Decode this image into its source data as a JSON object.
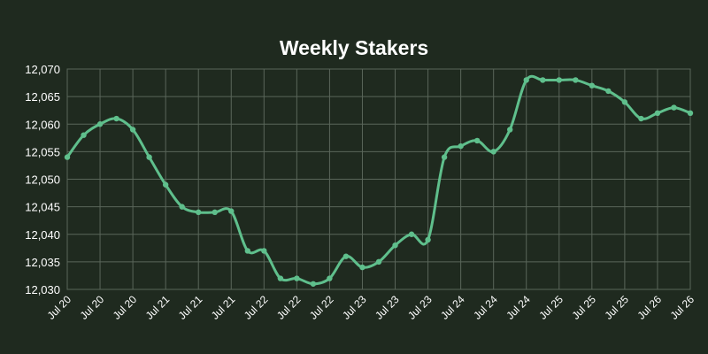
{
  "chart_data": {
    "type": "line",
    "title": "Weekly Stakers",
    "xlabel": "",
    "ylabel": "",
    "ylim": [
      12030,
      12070
    ],
    "yticks": [
      "12,030",
      "12,035",
      "12,040",
      "12,045",
      "12,050",
      "12,055",
      "12,060",
      "12,065",
      "12,070"
    ],
    "xticks": [
      "Jul 20",
      "Jul 20",
      "Jul 20",
      "Jul 21",
      "Jul 21",
      "Jul 21",
      "Jul 22",
      "Jul 22",
      "Jul 22",
      "Jul 23",
      "Jul 23",
      "Jul 23",
      "Jul 24",
      "Jul 24",
      "Jul 24",
      "Jul 25",
      "Jul 25",
      "Jul 25",
      "Jul 26",
      "Jul 26"
    ],
    "grid": true,
    "line_color": "#5fbf8c",
    "series": [
      {
        "values": [
          12054,
          12058,
          12060,
          12061,
          12059,
          12054,
          12049,
          12045,
          12044,
          12044,
          12044.2,
          12037,
          12037,
          12032,
          12032,
          12031,
          12032,
          12036,
          12034,
          12035,
          12038,
          12040,
          12039,
          12054,
          12056,
          12057,
          12055,
          12059,
          12068,
          12068,
          12068,
          12068,
          12067,
          12066,
          12064,
          12061,
          12062,
          12063,
          12062
        ]
      }
    ]
  }
}
